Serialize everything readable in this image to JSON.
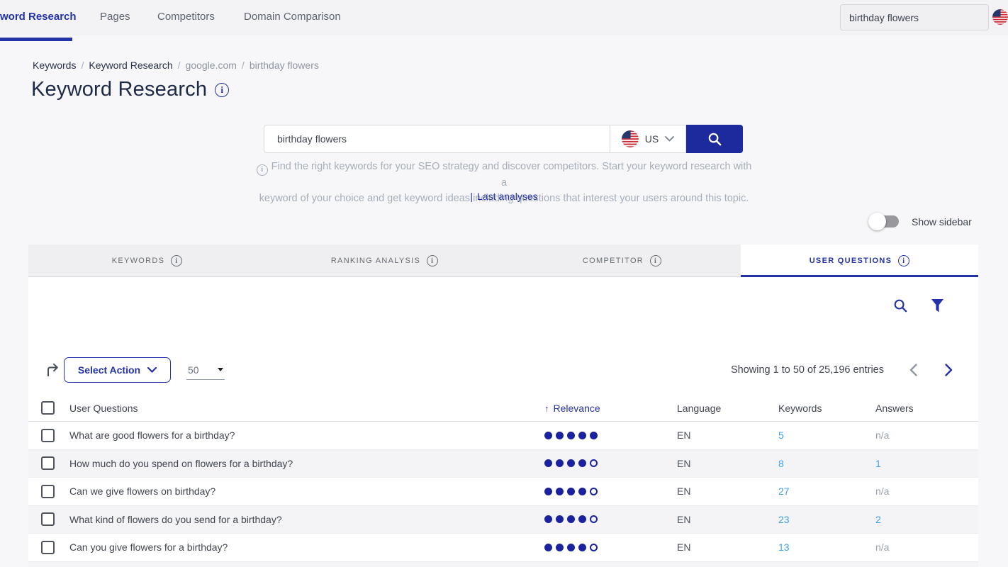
{
  "colors": {
    "accent": "#2432a8",
    "button": "#1c2a9e",
    "link_light": "#42a0e8",
    "dot": "#1a22a0"
  },
  "topbar": {
    "nav": [
      {
        "label": "word Research",
        "active": true
      },
      {
        "label": "Pages",
        "active": false
      },
      {
        "label": "Competitors",
        "active": false
      },
      {
        "label": "Domain Comparison",
        "active": false
      }
    ],
    "search_value": "birthday flowers",
    "flag": "us-flag"
  },
  "breadcrumb": {
    "items": [
      {
        "label": "Keywords"
      },
      {
        "label": "Keyword Research"
      },
      {
        "label": "google.com"
      },
      {
        "label": "birthday flowers"
      }
    ]
  },
  "page": {
    "title": "Keyword Research"
  },
  "search": {
    "value": "birthday flowers",
    "country": "US",
    "description_line1": "Find the right keywords for your SEO strategy and discover competitors. Start your keyword research with a",
    "description_line2": "keyword of your choice and get keyword ideas including questions that interest your users around this topic.",
    "last_analyses_bar": "|",
    "last_analyses": "Last analyses"
  },
  "sidebar_toggle": {
    "label": "Show sidebar",
    "state": "off"
  },
  "tabs": [
    {
      "label": "KEYWORDS",
      "active": false
    },
    {
      "label": "RANKING ANALYSIS",
      "active": false
    },
    {
      "label": "COMPETITOR",
      "active": false
    },
    {
      "label": "USER QUESTIONS",
      "active": true
    }
  ],
  "toolbar": {
    "select_action_label": "Select Action",
    "page_size": "50",
    "showing_text": "Showing 1 to 50 of 25,196 entries"
  },
  "table": {
    "columns": {
      "questions": "User Questions",
      "relevance": "Relevance",
      "language": "Language",
      "keywords": "Keywords",
      "answers": "Answers"
    },
    "sort": {
      "column": "Relevance",
      "direction": "asc",
      "arrow": "↑"
    },
    "rows": [
      {
        "question": "What are good flowers for a birthday?",
        "relevance": 5,
        "language": "EN",
        "keywords": "5",
        "answers": "n/a"
      },
      {
        "question": "How much do you spend on flowers for a birthday?",
        "relevance": 4,
        "language": "EN",
        "keywords": "8",
        "answers": "1"
      },
      {
        "question": "Can we give flowers on birthday?",
        "relevance": 4,
        "language": "EN",
        "keywords": "27",
        "answers": "n/a"
      },
      {
        "question": "What kind of flowers do you send for a birthday?",
        "relevance": 4,
        "language": "EN",
        "keywords": "23",
        "answers": "2"
      },
      {
        "question": "Can you give flowers for a birthday?",
        "relevance": 4,
        "language": "EN",
        "keywords": "13",
        "answers": "n/a"
      }
    ]
  }
}
